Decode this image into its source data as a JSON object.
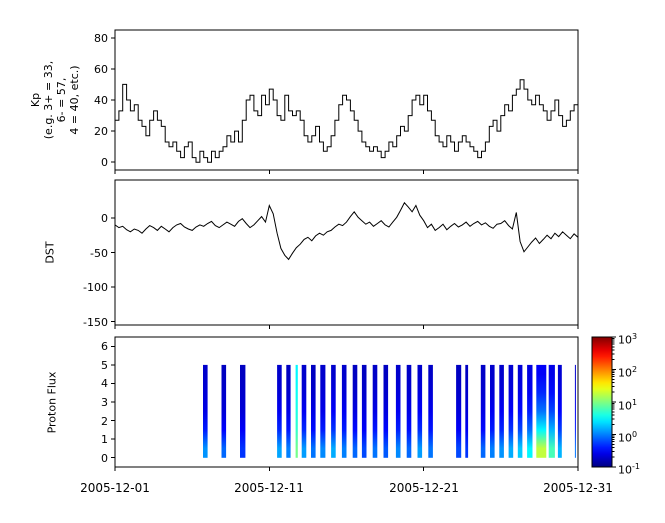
{
  "figure": {
    "background": "#ffffff"
  },
  "x_axis": {
    "range_days": [
      0,
      30
    ],
    "tick_positions": [
      0,
      10,
      20,
      30
    ],
    "tick_labels": [
      "2005-12-01",
      "2005-12-11",
      "2005-12-21",
      "2005-12-31"
    ]
  },
  "colorbar": {
    "base": "10",
    "exponents": [
      "3",
      "2",
      "1",
      "0",
      "-1"
    ],
    "scale": "log",
    "min": 0.1,
    "max": 1000,
    "colormap": "jet"
  },
  "chart_data": [
    {
      "type": "line",
      "subtype": "step",
      "name": "Kp",
      "ylabel_lines": [
        "Kp",
        "(e.g. 3+ = 33,",
        "6- = 57,",
        "4 = 40, etc.)"
      ],
      "ylim": [
        -5,
        85
      ],
      "yticks": [
        0,
        20,
        40,
        60,
        80
      ],
      "x_start_day": 0,
      "x_step_days": 0.25,
      "values": [
        27,
        33,
        50,
        40,
        33,
        37,
        27,
        23,
        17,
        27,
        33,
        27,
        23,
        13,
        10,
        13,
        7,
        3,
        10,
        13,
        3,
        0,
        7,
        3,
        0,
        7,
        3,
        7,
        10,
        17,
        13,
        20,
        13,
        27,
        40,
        43,
        33,
        30,
        43,
        37,
        47,
        40,
        30,
        27,
        43,
        33,
        30,
        33,
        27,
        17,
        13,
        17,
        23,
        13,
        7,
        10,
        17,
        27,
        37,
        43,
        40,
        33,
        27,
        20,
        13,
        10,
        7,
        10,
        7,
        3,
        7,
        13,
        10,
        17,
        23,
        20,
        30,
        40,
        43,
        37,
        43,
        33,
        27,
        17,
        13,
        10,
        17,
        13,
        7,
        13,
        17,
        13,
        10,
        7,
        3,
        7,
        13,
        23,
        27,
        20,
        30,
        37,
        33,
        43,
        47,
        53,
        47,
        40,
        37,
        43,
        37,
        33,
        27,
        33,
        40,
        30,
        23,
        27,
        33,
        37,
        30,
        27,
        33,
        30
      ]
    },
    {
      "type": "line",
      "name": "DST",
      "ylabel_lines": [
        "DST"
      ],
      "ylim": [
        -155,
        55
      ],
      "yticks": [
        0,
        -50,
        -100,
        -150
      ],
      "x_start_day": 0,
      "x_step_days": 0.25,
      "values": [
        -10,
        -14,
        -12,
        -17,
        -20,
        -16,
        -18,
        -22,
        -16,
        -11,
        -14,
        -18,
        -12,
        -16,
        -20,
        -14,
        -10,
        -8,
        -13,
        -16,
        -18,
        -13,
        -10,
        -12,
        -8,
        -5,
        -11,
        -14,
        -10,
        -6,
        -9,
        -12,
        -5,
        -1,
        -8,
        -14,
        -10,
        -4,
        2,
        -6,
        18,
        6,
        -22,
        -44,
        -54,
        -60,
        -51,
        -43,
        -38,
        -31,
        -28,
        -33,
        -26,
        -22,
        -25,
        -20,
        -18,
        -13,
        -9,
        -11,
        -6,
        2,
        9,
        1,
        -4,
        -9,
        -6,
        -12,
        -8,
        -4,
        -10,
        -13,
        -6,
        1,
        11,
        22,
        16,
        9,
        18,
        4,
        -4,
        -14,
        -9,
        -18,
        -14,
        -9,
        -17,
        -12,
        -8,
        -13,
        -10,
        -6,
        -12,
        -8,
        -5,
        -10,
        -7,
        -12,
        -15,
        -9,
        -8,
        -4,
        -11,
        -16,
        8,
        -34,
        -49,
        -42,
        -35,
        -29,
        -37,
        -31,
        -25,
        -30,
        -22,
        -27,
        -20,
        -25,
        -30,
        -23,
        -28,
        -32,
        -24,
        -30
      ]
    },
    {
      "type": "heatmap",
      "name": "Proton Flux",
      "ylabel_lines": [
        "Proton Flux"
      ],
      "ylim": [
        -0.5,
        6.5
      ],
      "yticks": [
        0,
        1,
        2,
        3,
        4,
        5,
        6
      ],
      "flux_rows_y": [
        0,
        1,
        2,
        3,
        4,
        5
      ],
      "stripes": [
        {
          "day": 5.7,
          "width": 0.3,
          "flux": [
            1.2,
            0.4,
            0.25,
            0.22,
            0.2
          ]
        },
        {
          "day": 6.9,
          "width": 0.3,
          "flux": [
            0.8,
            0.32,
            0.22,
            0.2,
            0.18
          ]
        },
        {
          "day": 8.1,
          "width": 0.35,
          "flux": [
            0.5,
            0.3,
            0.22,
            0.2,
            0.18
          ]
        },
        {
          "day": 10.5,
          "width": 0.3,
          "flux": [
            1.4,
            0.45,
            0.28,
            0.22,
            0.2
          ]
        },
        {
          "day": 11.1,
          "width": 0.28,
          "flux": [
            1.0,
            0.38,
            0.25,
            0.2,
            0.18
          ]
        },
        {
          "day": 11.7,
          "width": 0.14,
          "flux": [
            9,
            5,
            4,
            3.5,
            3
          ]
        },
        {
          "day": 12.1,
          "width": 0.3,
          "flux": [
            1.3,
            0.45,
            0.28,
            0.22,
            0.2
          ]
        },
        {
          "day": 12.7,
          "width": 0.3,
          "flux": [
            0.9,
            0.35,
            0.25,
            0.2,
            0.18
          ]
        },
        {
          "day": 13.3,
          "width": 0.33,
          "flux": [
            1.1,
            0.4,
            0.26,
            0.22,
            0.2
          ]
        },
        {
          "day": 14.0,
          "width": 0.3,
          "flux": [
            1.5,
            0.5,
            0.3,
            0.24,
            0.2
          ]
        },
        {
          "day": 14.7,
          "width": 0.3,
          "flux": [
            1.0,
            0.4,
            0.28,
            0.22,
            0.2
          ]
        },
        {
          "day": 15.4,
          "width": 0.3,
          "flux": [
            0.8,
            0.34,
            0.24,
            0.2,
            0.18
          ]
        },
        {
          "day": 16.0,
          "width": 0.3,
          "flux": [
            0.6,
            0.3,
            0.24,
            0.2,
            0.18
          ]
        },
        {
          "day": 16.7,
          "width": 0.3,
          "flux": [
            0.9,
            0.38,
            0.25,
            0.21,
            0.19
          ]
        },
        {
          "day": 17.4,
          "width": 0.3,
          "flux": [
            0.7,
            0.33,
            0.24,
            0.2,
            0.18
          ]
        },
        {
          "day": 18.2,
          "width": 0.3,
          "flux": [
            1.1,
            0.42,
            0.28,
            0.23,
            0.2
          ]
        },
        {
          "day": 18.9,
          "width": 0.3,
          "flux": [
            0.8,
            0.35,
            0.25,
            0.21,
            0.19
          ]
        },
        {
          "day": 19.6,
          "width": 0.3,
          "flux": [
            1.3,
            0.46,
            0.3,
            0.24,
            0.2
          ]
        },
        {
          "day": 20.3,
          "width": 0.3,
          "flux": [
            0.9,
            0.38,
            0.27,
            0.22,
            0.19
          ]
        },
        {
          "day": 22.1,
          "width": 0.33,
          "flux": [
            0.6,
            0.3,
            0.23,
            0.2,
            0.18
          ]
        },
        {
          "day": 22.7,
          "width": 0.18,
          "flux": [
            0.5,
            0.28,
            0.22,
            0.2,
            0.18
          ]
        },
        {
          "day": 23.7,
          "width": 0.3,
          "flux": [
            0.8,
            0.34,
            0.25,
            0.21,
            0.19
          ]
        },
        {
          "day": 24.3,
          "width": 0.3,
          "flux": [
            1.0,
            0.4,
            0.28,
            0.22,
            0.2
          ]
        },
        {
          "day": 24.9,
          "width": 0.3,
          "flux": [
            1.2,
            0.44,
            0.29,
            0.23,
            0.2
          ]
        },
        {
          "day": 25.5,
          "width": 0.3,
          "flux": [
            1.5,
            0.5,
            0.3,
            0.24,
            0.21
          ]
        },
        {
          "day": 26.1,
          "width": 0.3,
          "flux": [
            2.0,
            0.6,
            0.34,
            0.26,
            0.22
          ]
        },
        {
          "day": 26.7,
          "width": 0.35,
          "flux": [
            3.0,
            0.85,
            0.4,
            0.28,
            0.24
          ]
        },
        {
          "day": 27.3,
          "width": 0.65,
          "flux": [
            18,
            3.0,
            0.9,
            0.45,
            0.3
          ]
        },
        {
          "day": 28.1,
          "width": 0.4,
          "flux": [
            6,
            1.6,
            0.6,
            0.35,
            0.26
          ]
        },
        {
          "day": 28.7,
          "width": 0.25,
          "flux": [
            1.6,
            0.55,
            0.32,
            0.25,
            0.21
          ]
        },
        {
          "day": 29.8,
          "width": 0.06,
          "flux": [
            0.9,
            0.4,
            0.28,
            0.23,
            0.2
          ]
        }
      ]
    }
  ]
}
